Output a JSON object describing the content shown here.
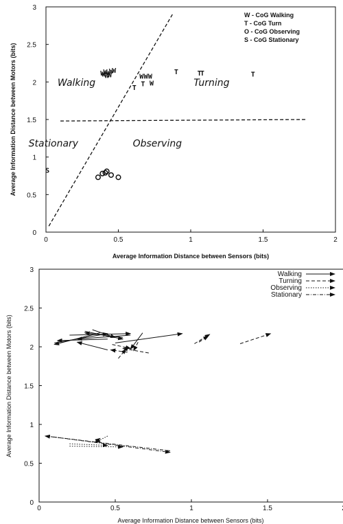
{
  "chart_data": [
    {
      "type": "scatter",
      "xlabel": "Average Information Distance between Sensors (bits)",
      "ylabel": "Average Information Distance between Motors (bits)",
      "xlim": [
        0,
        2
      ],
      "ylim": [
        0,
        3
      ],
      "x_ticks": [
        "0",
        "0.5",
        "1",
        "1.5",
        "2"
      ],
      "y_ticks": [
        "0",
        "0.5",
        "1",
        "1.5",
        "2",
        "2.5",
        "3"
      ],
      "legend_position": "top-right",
      "legend": [
        {
          "symbol": "W",
          "label": "W - CoG Walking"
        },
        {
          "symbol": "T",
          "label": "T - CoG Turn"
        },
        {
          "symbol": "O",
          "label": "O - CoG Observing"
        },
        {
          "symbol": "S",
          "label": "S - CoG Stationary"
        }
      ],
      "regions": [
        {
          "label": "Walking",
          "x": 0.08,
          "y": 1.95
        },
        {
          "label": "Turning",
          "x": 1.02,
          "y": 1.95
        },
        {
          "label": "Stationary",
          "x": -0.12,
          "y": 1.14
        },
        {
          "label": "Observing",
          "x": 0.6,
          "y": 1.14
        }
      ],
      "boundaries": [
        {
          "x": [
            0.02,
            0.88
          ],
          "y": [
            0.08,
            2.92
          ]
        },
        {
          "x": [
            0.1,
            1.8
          ],
          "y": [
            1.48,
            1.5
          ]
        }
      ],
      "series": [
        {
          "name": "W - CoG Walking",
          "symbol": "W",
          "x": [
            0.39,
            0.41,
            0.43,
            0.45,
            0.47,
            0.42,
            0.44,
            0.4,
            0.66,
            0.69,
            0.72,
            0.73
          ],
          "y": [
            2.12,
            2.14,
            2.13,
            2.15,
            2.16,
            2.09,
            2.1,
            2.11,
            2.08,
            2.08,
            2.08,
            1.99
          ]
        },
        {
          "name": "T - CoG Turn",
          "symbol": "T",
          "x": [
            0.61,
            0.67,
            0.9,
            1.06,
            1.08,
            1.43
          ],
          "y": [
            1.93,
            1.98,
            2.14,
            2.12,
            2.12,
            2.11
          ]
        },
        {
          "name": "O - CoG Observing",
          "symbol": "O",
          "x": [
            0.36,
            0.39,
            0.42,
            0.45,
            0.5,
            0.41
          ],
          "y": [
            0.73,
            0.78,
            0.81,
            0.76,
            0.73,
            0.79
          ]
        },
        {
          "name": "S - CoG Stationary",
          "symbol": "S",
          "x": [
            0.01
          ],
          "y": [
            0.83
          ]
        }
      ]
    },
    {
      "type": "line",
      "xlabel": "Average Information Distance between Sensors (bits)",
      "ylabel": "Average Information Distance between Motors (bits)",
      "xlim": [
        0,
        2
      ],
      "ylim": [
        0,
        3
      ],
      "x_ticks": [
        "0",
        "0.5",
        "1",
        "1.5",
        "2"
      ],
      "y_ticks": [
        "0",
        "0.5",
        "1",
        "1.5",
        "2",
        "2.5",
        "3"
      ],
      "legend_position": "top-right",
      "series": [
        {
          "name": "Walking",
          "style": "solid",
          "arrows": [
            [
              0.1,
              2.05,
              0.45,
              2.17
            ],
            [
              0.45,
              2.1,
              0.12,
              2.08
            ],
            [
              0.3,
              2.2,
              0.55,
              2.1
            ],
            [
              0.6,
              2.15,
              0.25,
              2.1
            ],
            [
              0.2,
              2.15,
              0.6,
              2.17
            ],
            [
              0.4,
              2.18,
              0.1,
              2.03
            ],
            [
              0.68,
              2.18,
              0.6,
              1.97
            ],
            [
              0.5,
              2.05,
              0.94,
              2.17
            ],
            [
              0.35,
              2.22,
              0.5,
              2.12
            ],
            [
              0.55,
              2.12,
              0.3,
              2.18
            ],
            [
              0.45,
              1.96,
              0.25,
              2.06
            ]
          ]
        },
        {
          "name": "Turning",
          "style": "dashed",
          "arrows": [
            [
              1.02,
              2.04,
              1.12,
              2.16
            ],
            [
              1.05,
              2.06,
              1.11,
              2.14
            ],
            [
              1.32,
              2.04,
              1.52,
              2.17
            ],
            [
              0.48,
              2.03,
              0.6,
              1.98
            ],
            [
              0.58,
              1.93,
              0.47,
              1.96
            ],
            [
              0.52,
              1.85,
              0.57,
              1.97
            ],
            [
              0.65,
              2.06,
              0.62,
              1.95
            ],
            [
              0.72,
              1.92,
              0.55,
              1.98
            ]
          ]
        },
        {
          "name": "Observing",
          "style": "dotted",
          "arrows": [
            [
              0.2,
              0.75,
              0.45,
              0.73
            ],
            [
              0.45,
              0.85,
              0.37,
              0.77
            ],
            [
              0.2,
              0.72,
              0.55,
              0.71
            ],
            [
              0.37,
              0.78,
              0.4,
              0.82
            ]
          ]
        },
        {
          "name": "Stationary",
          "style": "dashdot",
          "arrows": [
            [
              0.05,
              0.85,
              0.86,
              0.64
            ],
            [
              0.86,
              0.66,
              0.04,
              0.85
            ]
          ]
        }
      ]
    }
  ]
}
